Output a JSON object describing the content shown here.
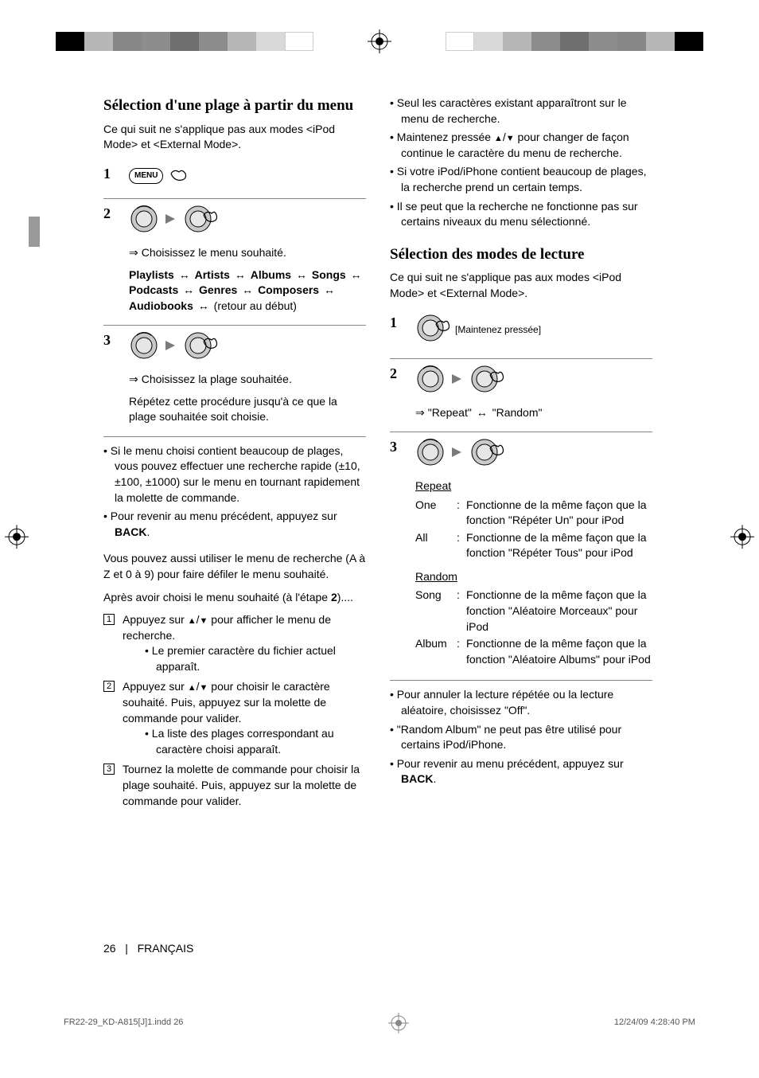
{
  "registration": {
    "block_colors_left": [
      "#000000",
      "#b7b7b7",
      "#878787",
      "#8d8d8d",
      "#6e6e6e",
      "#8d8d8d",
      "#b7b7b7",
      "#d9d9d9",
      "#ffffff"
    ],
    "block_colors_right": [
      "#ffffff",
      "#d9d9d9",
      "#b7b7b7",
      "#8d8d8d",
      "#6e6e6e",
      "#8d8d8d",
      "#878787",
      "#b7b7b7",
      "#000000"
    ]
  },
  "col1": {
    "h2": "Sélection d'une plage à partir du menu",
    "intro": "Ce qui suit ne s'applique pas aux modes <iPod Mode> et <External Mode>.",
    "step1_label": "1",
    "menu_label": "MENU",
    "step2_label": "2",
    "step2_line1": "Choisissez le menu souhaité.",
    "step2_path_parts": [
      "Playlists",
      "Artists",
      "Albums",
      "Songs",
      "Podcasts",
      "Genres",
      "Composers",
      "Audiobooks"
    ],
    "step2_tail": "(retour au début)",
    "step3_label": "3",
    "step3_line1": "Choisissez la plage souhaitée.",
    "step3_line2": "Répétez cette procédure jusqu'à ce que la plage souhaitée soit choisie.",
    "bullets": [
      "Si le menu choisi contient beaucoup de plages, vous pouvez effectuer une recherche rapide (±10, ±100, ±1000) sur le menu en tournant rapidement la molette de commande.",
      "Pour revenir au menu précédent, appuyez sur "
    ],
    "back_label": "BACK",
    "para_after_bullets_1": "Vous pouvez aussi utiliser le menu de recherche (A à Z et 0 à 9) pour faire défiler le menu souhaité.",
    "para_after_bullets_2_a": "Après avoir choisi le menu souhaité (à l'étape ",
    "para_after_bullets_2_num": "2",
    "para_after_bullets_2_b": ")....",
    "numlist": [
      {
        "n": "1",
        "txt_a": "Appuyez sur ",
        "txt_b": " pour afficher le menu de recherche.",
        "sub": [
          "Le premier caractère du fichier actuel apparaît."
        ]
      },
      {
        "n": "2",
        "txt_a": "Appuyez sur ",
        "txt_b": " pour choisir le caractère souhaité. Puis, appuyez sur la molette de commande pour valider.",
        "sub": [
          "La liste des plages correspondant au caractère choisi apparaît."
        ]
      },
      {
        "n": "3",
        "txt_a": "Tournez la molette de commande pour choisir la plage souhaité. Puis, appuyez sur la molette de commande pour valider.",
        "sub": []
      }
    ]
  },
  "col2_top": {
    "bullets": [
      "Seul les caractères existant apparaîtront sur le menu de recherche.",
      {
        "pre": "Maintenez pressée ",
        "post": " pour changer de façon continue le caractère du menu de recherche."
      },
      "Si votre iPod/iPhone contient beaucoup de plages, la recherche prend un certain temps.",
      "Il se peut que la recherche ne fonctionne pas sur certains niveaux du menu sélectionné."
    ]
  },
  "col2_section": {
    "h2": "Sélection des modes de lecture",
    "intro": "Ce qui suit ne s'applique pas aux modes <iPod Mode> et <External Mode>.",
    "step1_label": "1",
    "step1_note": "[Maintenez pressée]",
    "step2_label": "2",
    "step2_path_a": "\"Repeat\"",
    "step2_path_b": "\"Random\"",
    "step3_label": "3",
    "repeat_heading": "Repeat",
    "repeat_rows": [
      {
        "term": "One",
        "desc": "Fonctionne de la même façon que la fonction \"Répéter Un\" pour iPod"
      },
      {
        "term": "All",
        "desc": "Fonctionne de la même façon que la fonction \"Répéter Tous\" pour iPod"
      }
    ],
    "random_heading": "Random",
    "random_rows": [
      {
        "term": "Song",
        "desc": "Fonctionne de la même façon que la fonction \"Aléatoire Morceaux\" pour iPod"
      },
      {
        "term": "Album",
        "desc": "Fonctionne de la même façon que la fonction \"Aléatoire Albums\" pour iPod"
      }
    ],
    "bullets": [
      "Pour annuler la lecture répétée ou la lecture aléatoire, choisissez \"Off\".",
      "\"Random Album\" ne peut pas être utilisé pour certains iPod/iPhone.",
      "Pour revenir au menu précédent, appuyez sur "
    ],
    "back_label": "BACK"
  },
  "footer": {
    "page_num": "26",
    "lang": "FRANÇAIS",
    "imprint_file": "FR22-29_KD-A815[J]1.indd   26",
    "imprint_time": "12/24/09   4:28:40 PM"
  }
}
